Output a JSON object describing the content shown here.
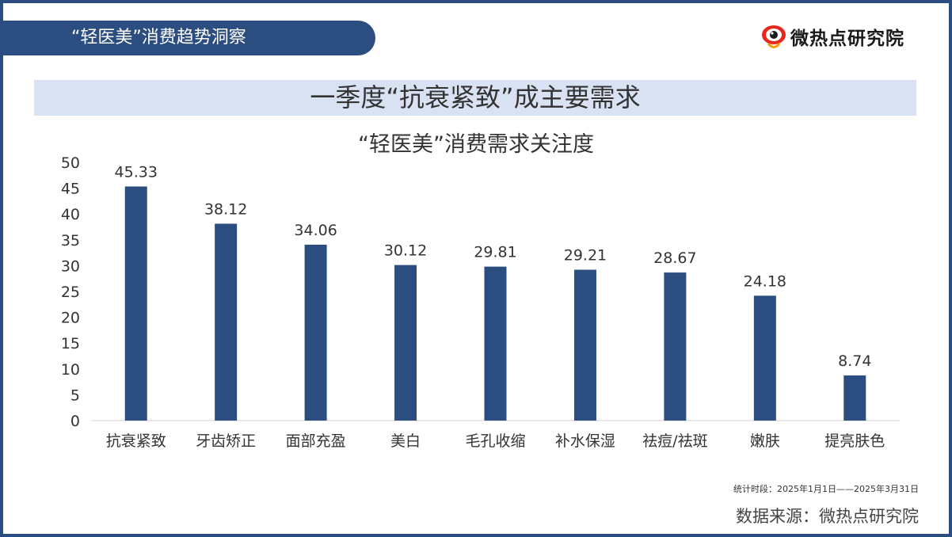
{
  "header": {
    "tab_title": "“轻医美”消费趋势洞察",
    "brand_name": "微热点研究院"
  },
  "banner": {
    "title": "一季度“抗衰紧致”成主要需求"
  },
  "chart_data": {
    "type": "bar",
    "title": "“轻医美”消费需求关注度",
    "xlabel": "",
    "ylabel": "",
    "categories": [
      "抗衰紧致",
      "牙齿矫正",
      "面部充盈",
      "美白",
      "毛孔收缩",
      "补水保湿",
      "祛痘/祛斑",
      "嫩肤",
      "提亮肤色"
    ],
    "values": [
      45.33,
      38.12,
      34.06,
      30.12,
      29.81,
      29.21,
      28.67,
      24.18,
      8.74
    ],
    "value_labels": [
      "45.33",
      "38.12",
      "34.06",
      "30.12",
      "29.81",
      "29.21",
      "28.67",
      "24.18",
      "8.74"
    ],
    "ylim": [
      0,
      50
    ],
    "yticks": [
      0,
      5,
      10,
      15,
      20,
      25,
      30,
      35,
      40,
      45,
      50
    ],
    "grid": false,
    "legend": "none",
    "bar_color": "#2c4d7f"
  },
  "footer": {
    "period_note": "统计时段：2025年1月1日——2025年3月31日",
    "source": "数据来源：微热点研究院"
  },
  "colors": {
    "frame": "#2c4d7f",
    "banner_bg": "#d9e2f3",
    "logo_red": "#e8261c"
  }
}
